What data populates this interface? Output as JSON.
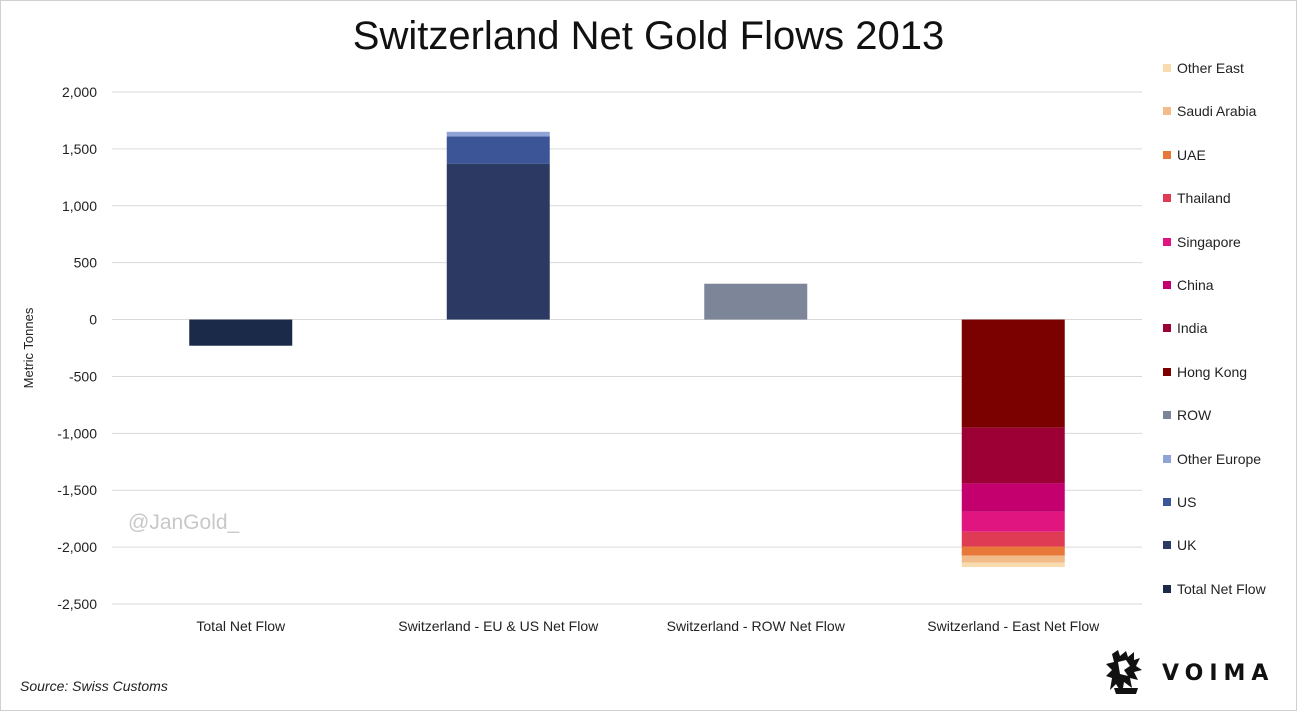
{
  "chart_data": {
    "type": "bar",
    "stacked": true,
    "title": "Switzerland Net Gold Flows 2013",
    "ylabel": "Metric Tonnes",
    "ylim": [
      -2500,
      2000
    ],
    "yticks": [
      2000,
      1500,
      1000,
      500,
      0,
      -500,
      -1000,
      -1500,
      -2000,
      -2500
    ],
    "ytick_labels": [
      "2,000",
      "1,500",
      "1,000",
      "500",
      "0",
      "-500",
      "-1,000",
      "-1,500",
      "-2,000",
      "-2,500"
    ],
    "grid": true,
    "legend_position": "right",
    "categories": [
      "Total Net Flow",
      "Switzerland - EU & US Net Flow",
      "Switzerland - ROW Net Flow",
      "Switzerland - East Net Flow"
    ],
    "series": [
      {
        "name": "Total Net Flow",
        "color": "#1c2a4a",
        "values": [
          -230,
          0,
          0,
          0
        ]
      },
      {
        "name": "UK",
        "color": "#2c3a63",
        "values": [
          0,
          1370,
          0,
          0
        ]
      },
      {
        "name": "US",
        "color": "#3b5597",
        "values": [
          0,
          240,
          0,
          0
        ]
      },
      {
        "name": "Other Europe",
        "color": "#8fa3d6",
        "values": [
          0,
          40,
          0,
          0
        ]
      },
      {
        "name": "ROW",
        "color": "#7d8699",
        "values": [
          0,
          0,
          315,
          0
        ]
      },
      {
        "name": "Hong Kong",
        "color": "#7b0000",
        "values": [
          0,
          0,
          0,
          -950
        ]
      },
      {
        "name": "India",
        "color": "#9c0035",
        "values": [
          0,
          0,
          0,
          -490
        ]
      },
      {
        "name": "China",
        "color": "#c4006e",
        "values": [
          0,
          0,
          0,
          -250
        ]
      },
      {
        "name": "Singapore",
        "color": "#e0157f",
        "values": [
          0,
          0,
          0,
          -175
        ]
      },
      {
        "name": "Thailand",
        "color": "#e03b55",
        "values": [
          0,
          0,
          0,
          -130
        ]
      },
      {
        "name": "UAE",
        "color": "#e8773a",
        "values": [
          0,
          0,
          0,
          -80
        ]
      },
      {
        "name": "Saudi Arabia",
        "color": "#f1bb8a",
        "values": [
          0,
          0,
          0,
          -60
        ]
      },
      {
        "name": "Other East",
        "color": "#f8dcae",
        "values": [
          0,
          0,
          0,
          -40
        ]
      }
    ],
    "legend_order": [
      "Other East",
      "Saudi Arabia",
      "UAE",
      "Thailand",
      "Singapore",
      "China",
      "India",
      "Hong Kong",
      "ROW",
      "Other Europe",
      "US",
      "UK",
      "Total Net Flow"
    ]
  },
  "watermark": "@JanGold_",
  "source": "Source: Swiss Customs",
  "brand": {
    "name": "VOIMA",
    "logo_icon": "lion-crest-icon"
  }
}
